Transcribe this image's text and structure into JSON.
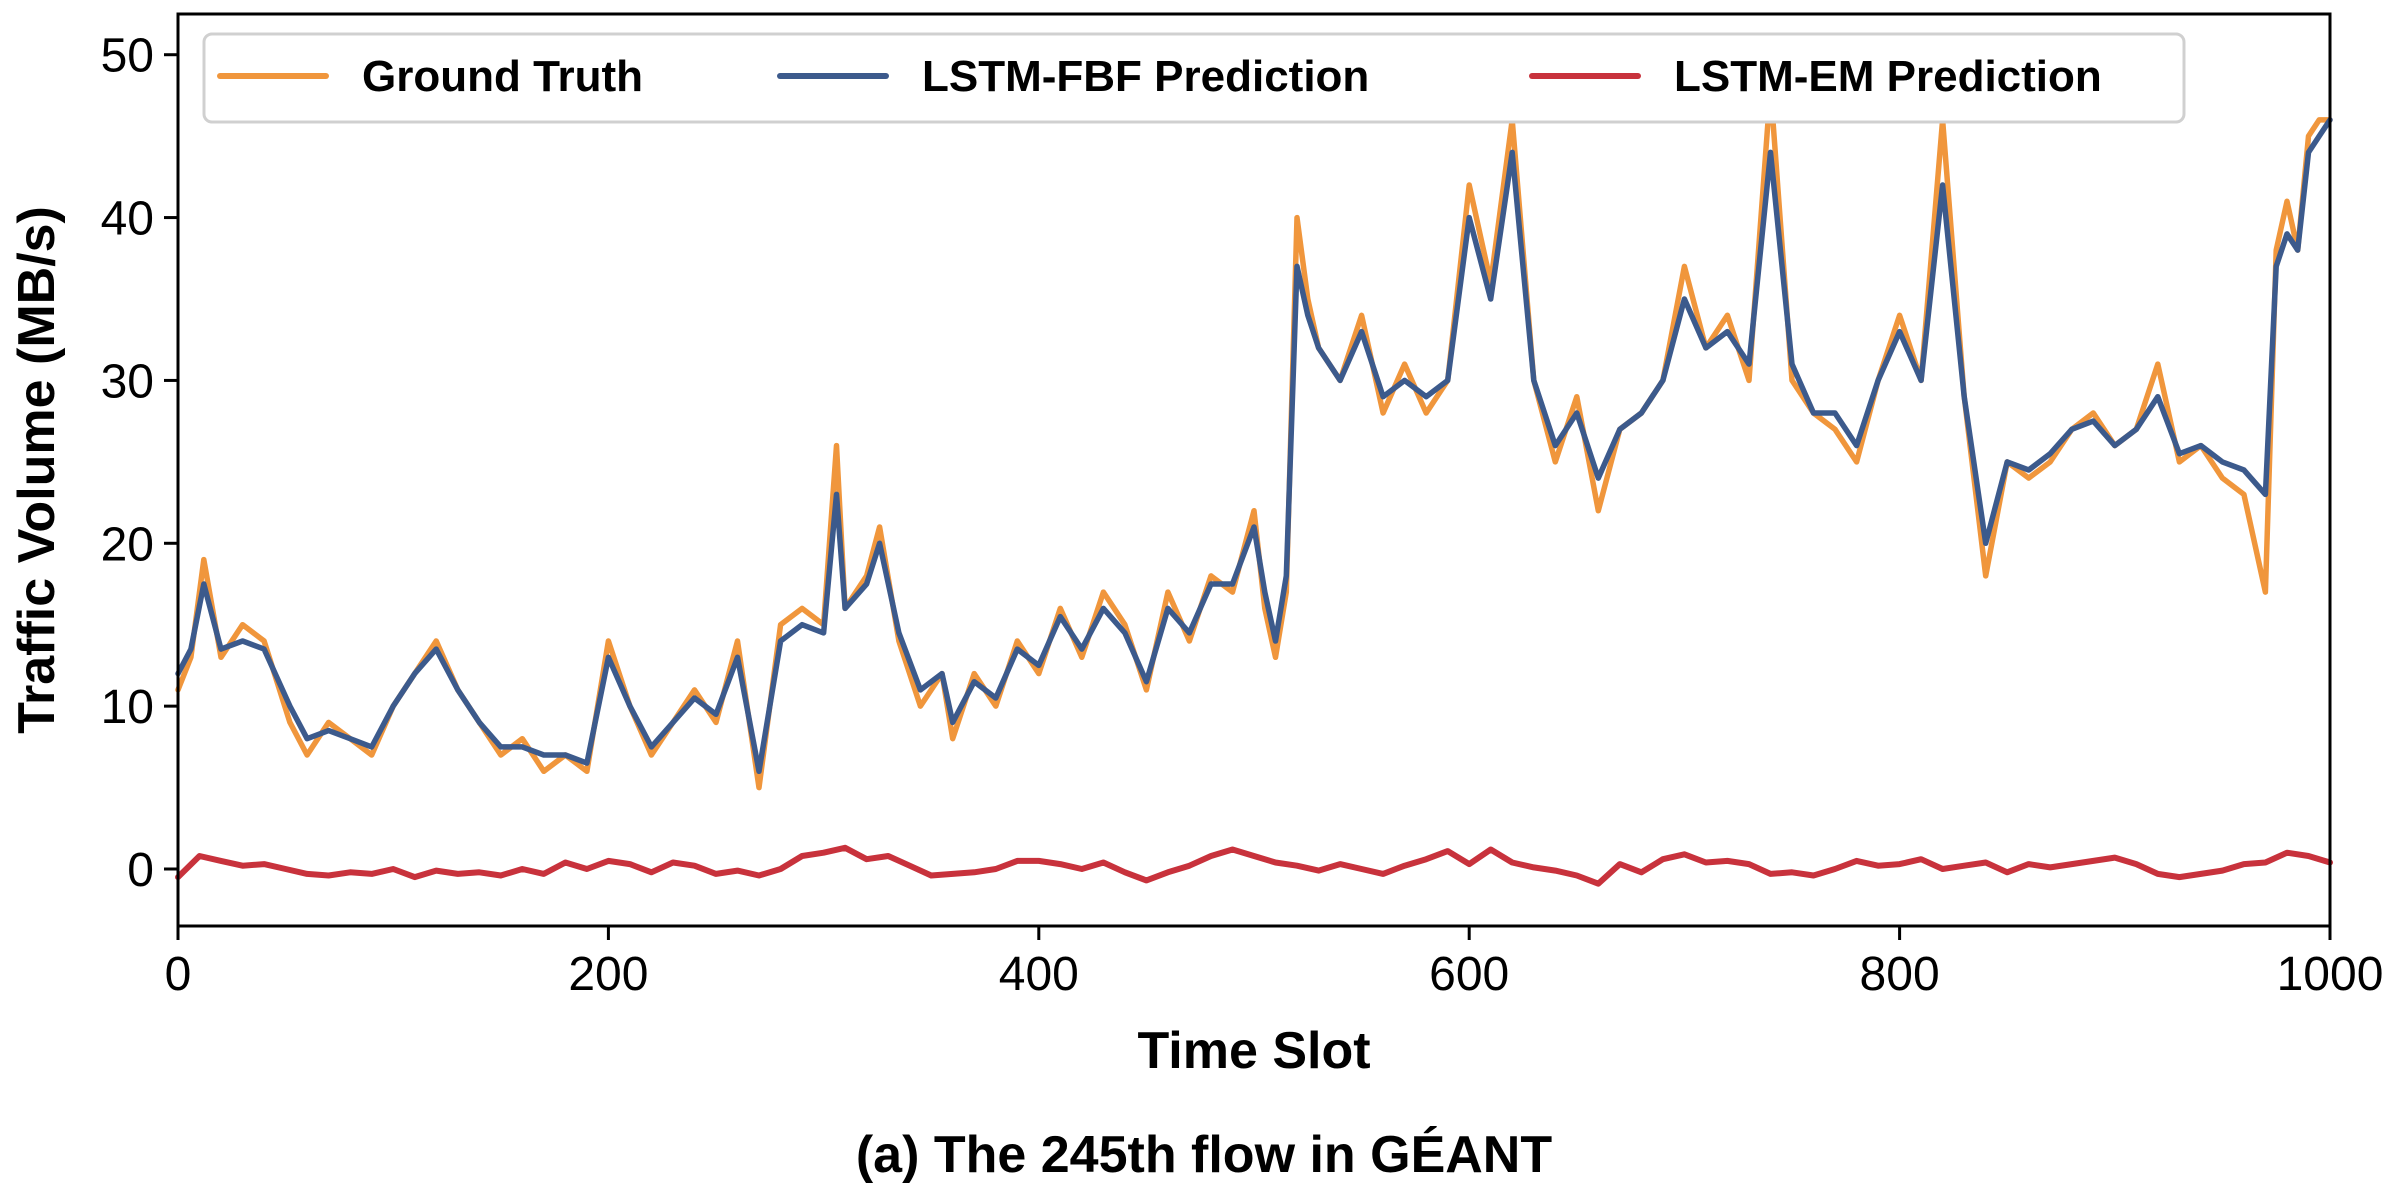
{
  "chart_data": {
    "type": "line",
    "title": "",
    "caption": "(a) The 245th flow in GÉANT",
    "xlabel": "Time Slot",
    "ylabel": "Traffic Volume (MB/s)",
    "xlim": [
      0,
      1000
    ],
    "ylim": [
      -3.5,
      52.5
    ],
    "xticks": [
      0,
      200,
      400,
      600,
      800,
      1000
    ],
    "yticks": [
      0,
      10,
      20,
      30,
      40,
      50
    ],
    "grid": false,
    "legend_position": "top",
    "series": [
      {
        "name": "Ground Truth",
        "color": "#f0963c",
        "x": [
          0,
          6,
          12,
          20,
          30,
          40,
          52,
          60,
          70,
          80,
          90,
          100,
          110,
          120,
          130,
          140,
          150,
          160,
          170,
          180,
          190,
          200,
          210,
          220,
          230,
          240,
          250,
          260,
          270,
          280,
          290,
          300,
          306,
          310,
          320,
          326,
          335,
          345,
          355,
          360,
          370,
          380,
          390,
          400,
          410,
          420,
          430,
          440,
          450,
          460,
          470,
          480,
          490,
          500,
          505,
          510,
          515,
          520,
          525,
          530,
          540,
          550,
          560,
          570,
          580,
          590,
          600,
          610,
          620,
          630,
          640,
          650,
          660,
          670,
          680,
          690,
          700,
          710,
          720,
          730,
          740,
          750,
          760,
          770,
          780,
          790,
          800,
          810,
          820,
          830,
          840,
          850,
          860,
          870,
          880,
          890,
          900,
          910,
          920,
          930,
          940,
          950,
          960,
          970,
          975,
          980,
          985,
          990,
          995,
          1000
        ],
        "y": [
          11,
          13,
          19,
          13,
          15,
          14,
          9,
          7,
          9,
          8,
          7,
          10,
          12,
          14,
          11,
          9,
          7,
          8,
          6,
          7,
          6,
          14,
          10,
          7,
          9,
          11,
          9,
          14,
          5,
          15,
          16,
          15,
          26,
          16,
          18,
          21,
          14,
          10,
          12,
          8,
          12,
          10,
          14,
          12,
          16,
          13,
          17,
          15,
          11,
          17,
          14,
          18,
          17,
          22,
          16,
          13,
          17,
          40,
          35,
          32,
          30,
          34,
          28,
          31,
          28,
          30,
          42,
          36,
          46,
          30,
          25,
          29,
          22,
          27,
          28,
          30,
          37,
          32,
          34,
          30,
          48,
          30,
          28,
          27,
          25,
          30,
          34,
          30,
          46,
          29,
          18,
          25,
          24,
          25,
          27,
          28,
          26,
          27,
          31,
          25,
          26,
          24,
          23,
          17,
          38,
          41,
          38,
          45,
          46,
          46
        ],
        "values": [
          11,
          13,
          19,
          13,
          15,
          14,
          9,
          7,
          9,
          8,
          7,
          10,
          12,
          14,
          11,
          9,
          7,
          8,
          6,
          7,
          6,
          14,
          10,
          7,
          9,
          11,
          9,
          14,
          5,
          15,
          16,
          15,
          26,
          16,
          18,
          21,
          14,
          10,
          12,
          8,
          12,
          10,
          14,
          12,
          16,
          13,
          17,
          15,
          11,
          17,
          14,
          18,
          17,
          22,
          16,
          13,
          17,
          40,
          35,
          32,
          30,
          34,
          28,
          31,
          28,
          30,
          42,
          36,
          46,
          30,
          25,
          29,
          22,
          27,
          28,
          30,
          37,
          32,
          34,
          30,
          48,
          30,
          28,
          27,
          25,
          30,
          34,
          30,
          46,
          29,
          18,
          25,
          24,
          25,
          27,
          28,
          26,
          27,
          31,
          25,
          26,
          24,
          23,
          17,
          38,
          41,
          38,
          45,
          46,
          46
        ]
      },
      {
        "name": "LSTM-FBF Prediction",
        "color": "#3c5a8c",
        "x": [
          0,
          6,
          12,
          20,
          30,
          40,
          52,
          60,
          70,
          80,
          90,
          100,
          110,
          120,
          130,
          140,
          150,
          160,
          170,
          180,
          190,
          200,
          210,
          220,
          230,
          240,
          250,
          260,
          270,
          280,
          290,
          300,
          306,
          310,
          320,
          326,
          335,
          345,
          355,
          360,
          370,
          380,
          390,
          400,
          410,
          420,
          430,
          440,
          450,
          460,
          470,
          480,
          490,
          500,
          505,
          510,
          515,
          520,
          525,
          530,
          540,
          550,
          560,
          570,
          580,
          590,
          600,
          610,
          620,
          630,
          640,
          650,
          660,
          670,
          680,
          690,
          700,
          710,
          720,
          730,
          740,
          750,
          760,
          770,
          780,
          790,
          800,
          810,
          820,
          830,
          840,
          850,
          860,
          870,
          880,
          890,
          900,
          910,
          920,
          930,
          940,
          950,
          960,
          970,
          975,
          980,
          985,
          990,
          995,
          1000
        ],
        "y": [
          12,
          13.5,
          17.5,
          13.5,
          14,
          13.5,
          10,
          8,
          8.5,
          8,
          7.5,
          10,
          12,
          13.5,
          11,
          9,
          7.5,
          7.5,
          7,
          7,
          6.5,
          13,
          10,
          7.5,
          9,
          10.5,
          9.5,
          13,
          6,
          14,
          15,
          14.5,
          23,
          16,
          17.5,
          20,
          14.5,
          11,
          12,
          9,
          11.5,
          10.5,
          13.5,
          12.5,
          15.5,
          13.5,
          16,
          14.5,
          11.5,
          16,
          14.5,
          17.5,
          17.5,
          21,
          17,
          14,
          18,
          37,
          34,
          32,
          30,
          33,
          29,
          30,
          29,
          30,
          40,
          35,
          44,
          30,
          26,
          28,
          24,
          27,
          28,
          30,
          35,
          32,
          33,
          31,
          44,
          31,
          28,
          28,
          26,
          30,
          33,
          30,
          42,
          29,
          20,
          25,
          24.5,
          25.5,
          27,
          27.5,
          26,
          27,
          29,
          25.5,
          26,
          25,
          24.5,
          23,
          37,
          39,
          38,
          44,
          45,
          46
        ],
        "values": [
          12,
          13.5,
          17.5,
          13.5,
          14,
          13.5,
          10,
          8,
          8.5,
          8,
          7.5,
          10,
          12,
          13.5,
          11,
          9,
          7.5,
          7.5,
          7,
          7,
          6.5,
          13,
          10,
          7.5,
          9,
          10.5,
          9.5,
          13,
          6,
          14,
          15,
          14.5,
          23,
          16,
          17.5,
          20,
          14.5,
          11,
          12,
          9,
          11.5,
          10.5,
          13.5,
          12.5,
          15.5,
          13.5,
          16,
          14.5,
          11.5,
          16,
          14.5,
          17.5,
          17.5,
          21,
          17,
          14,
          18,
          37,
          34,
          32,
          30,
          33,
          29,
          30,
          29,
          30,
          40,
          35,
          44,
          30,
          26,
          28,
          24,
          27,
          28,
          30,
          35,
          32,
          33,
          31,
          44,
          31,
          28,
          28,
          26,
          30,
          33,
          30,
          42,
          29,
          20,
          25,
          24.5,
          25.5,
          27,
          27.5,
          26,
          27,
          29,
          25.5,
          26,
          25,
          24.5,
          23,
          37,
          39,
          38,
          44,
          45,
          46
        ]
      },
      {
        "name": "LSTM-EM Prediction",
        "color": "#c8323c",
        "x": [
          0,
          10,
          20,
          30,
          40,
          50,
          60,
          70,
          80,
          90,
          100,
          110,
          120,
          130,
          140,
          150,
          160,
          170,
          180,
          190,
          200,
          210,
          220,
          230,
          240,
          250,
          260,
          270,
          280,
          290,
          300,
          310,
          320,
          330,
          340,
          350,
          360,
          370,
          380,
          390,
          400,
          410,
          420,
          430,
          440,
          450,
          460,
          470,
          480,
          490,
          500,
          510,
          520,
          530,
          540,
          550,
          560,
          570,
          580,
          590,
          600,
          610,
          620,
          630,
          640,
          650,
          660,
          670,
          680,
          690,
          700,
          710,
          720,
          730,
          740,
          750,
          760,
          770,
          780,
          790,
          800,
          810,
          820,
          830,
          840,
          850,
          860,
          870,
          880,
          890,
          900,
          910,
          920,
          930,
          940,
          950,
          960,
          970,
          980,
          990,
          1000
        ],
        "y": [
          -0.5,
          0.8,
          0.5,
          0.2,
          0.3,
          0,
          -0.3,
          -0.4,
          -0.2,
          -0.3,
          0,
          -0.5,
          -0.1,
          -0.3,
          -0.2,
          -0.4,
          0,
          -0.3,
          0.4,
          0,
          0.5,
          0.3,
          -0.2,
          0.4,
          0.2,
          -0.3,
          -0.1,
          -0.4,
          0,
          0.8,
          1,
          1.3,
          0.6,
          0.8,
          0.2,
          -0.4,
          -0.3,
          -0.2,
          0,
          0.5,
          0.5,
          0.3,
          0,
          0.4,
          -0.2,
          -0.7,
          -0.2,
          0.2,
          0.8,
          1.2,
          0.8,
          0.4,
          0.2,
          -0.1,
          0.3,
          0,
          -0.3,
          0.2,
          0.6,
          1.1,
          0.3,
          1.2,
          0.4,
          0.1,
          -0.1,
          -0.4,
          -0.9,
          0.3,
          -0.2,
          0.6,
          0.9,
          0.4,
          0.5,
          0.3,
          -0.3,
          -0.2,
          -0.4,
          0,
          0.5,
          0.2,
          0.3,
          0.6,
          0,
          0.2,
          0.4,
          -0.2,
          0.3,
          0.1,
          0.3,
          0.5,
          0.7,
          0.3,
          -0.3,
          -0.5,
          -0.3,
          -0.1,
          0.3,
          0.4,
          1,
          0.8,
          0.4
        ],
        "values": [
          -0.5,
          0.8,
          0.5,
          0.2,
          0.3,
          0,
          -0.3,
          -0.4,
          -0.2,
          -0.3,
          0,
          -0.5,
          -0.1,
          -0.3,
          -0.2,
          -0.4,
          0,
          -0.3,
          0.4,
          0,
          0.5,
          0.3,
          -0.2,
          0.4,
          0.2,
          -0.3,
          -0.1,
          -0.4,
          0,
          0.8,
          1,
          1.3,
          0.6,
          0.8,
          0.2,
          -0.4,
          -0.3,
          -0.2,
          0,
          0.5,
          0.5,
          0.3,
          0,
          0.4,
          -0.2,
          -0.7,
          -0.2,
          0.2,
          0.8,
          1.2,
          0.8,
          0.4,
          0.2,
          -0.1,
          0.3,
          0,
          -0.3,
          0.2,
          0.6,
          1.1,
          0.3,
          1.2,
          0.4,
          0.1,
          -0.1,
          -0.4,
          -0.9,
          0.3,
          -0.2,
          0.6,
          0.9,
          0.4,
          0.5,
          0.3,
          -0.3,
          -0.2,
          -0.4,
          0,
          0.5,
          0.2,
          0.3,
          0.6,
          0,
          0.2,
          0.4,
          -0.2,
          0.3,
          0.1,
          0.3,
          0.5,
          0.7,
          0.3,
          -0.3,
          -0.5,
          -0.3,
          -0.1,
          0.3,
          0.4,
          1,
          0.8,
          0.4
        ]
      }
    ]
  }
}
